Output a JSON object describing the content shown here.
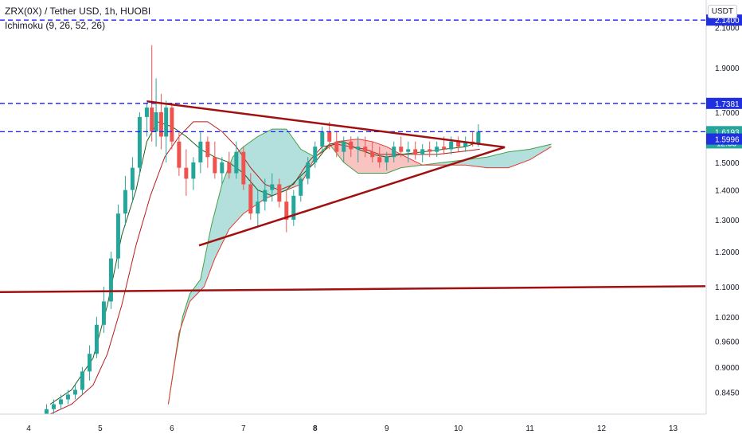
{
  "header": {
    "symbol_line": "ZRX(0X) / Tether USD, 1h, HUOBI",
    "indicator_line": "Ichimoku (9, 26, 52, 26)"
  },
  "currency_button": "USDT",
  "colors": {
    "up": "#26a69a",
    "down": "#ef5350",
    "blue_line": "#1a1aff",
    "trend": "#a01010",
    "cloud_green": "rgba(38,166,154,0.35)",
    "cloud_red": "rgba(239,83,80,0.35)",
    "badge_blue": "#2030e0",
    "badge_green": "#26a69a"
  },
  "chart_data": {
    "type": "candlestick",
    "title": "ZRX(0X) / Tether USD, 1h, HUOBI",
    "y_axis": {
      "side": "right",
      "scale": "log",
      "range": [
        0.8,
        2.25
      ],
      "ticks": [
        "2.1000",
        "1.9000",
        "1.7000",
        "1.5000",
        "1.4000",
        "1.3000",
        "1.2000",
        "1.1000",
        "1.0200",
        "0.9600",
        "0.9000",
        "0.8450"
      ]
    },
    "x_axis": {
      "range": [
        3.6,
        13.45
      ],
      "ticks": [
        {
          "label": "4",
          "value": 4
        },
        {
          "label": "5",
          "value": 5
        },
        {
          "label": "6",
          "value": 6
        },
        {
          "label": "7",
          "value": 7
        },
        {
          "label": "8",
          "value": 8,
          "bold": true
        },
        {
          "label": "9",
          "value": 9
        },
        {
          "label": "10",
          "value": 10
        },
        {
          "label": "11",
          "value": 11
        },
        {
          "label": "12",
          "value": 12
        },
        {
          "label": "13",
          "value": 13
        }
      ]
    },
    "horizontal_levels": [
      {
        "label": "2.1400",
        "value": 2.14,
        "color": "blue",
        "style": "dashed"
      },
      {
        "label": "1.7381",
        "value": 1.7381,
        "color": "blue",
        "style": "dashed"
      },
      {
        "label": "1.6193",
        "value": 1.6193,
        "color": "blue",
        "style": "dashed"
      }
    ],
    "price_badges": [
      {
        "label": "1.6193",
        "value": 1.6193,
        "kind": "last-price"
      },
      {
        "label": "12:33",
        "kind": "countdown"
      },
      {
        "label": "1.5996",
        "value": 1.5996,
        "kind": "level"
      }
    ],
    "trend_lines": [
      {
        "name": "triangle-upper",
        "points": [
          [
            5.65,
            1.747
          ],
          [
            10.65,
            1.558
          ]
        ]
      },
      {
        "name": "triangle-lower",
        "points": [
          [
            6.38,
            1.219
          ],
          [
            10.65,
            1.558
          ]
        ]
      },
      {
        "name": "horizontal-support",
        "points": [
          [
            3.6,
            1.085
          ],
          [
            13.45,
            1.101
          ]
        ]
      }
    ],
    "ichimoku": {
      "params": "9, 26, 52, 26",
      "span_a": [
        [
          5.95,
          0.82
        ],
        [
          6.05,
          0.92
        ],
        [
          6.15,
          1.02
        ],
        [
          6.25,
          1.08
        ],
        [
          6.4,
          1.12
        ],
        [
          6.55,
          1.28
        ],
        [
          6.7,
          1.42
        ],
        [
          6.85,
          1.52
        ],
        [
          7.0,
          1.56
        ],
        [
          7.2,
          1.6
        ],
        [
          7.4,
          1.63
        ],
        [
          7.6,
          1.63
        ],
        [
          7.8,
          1.55
        ],
        [
          8.0,
          1.52
        ],
        [
          8.2,
          1.57
        ],
        [
          8.4,
          1.5
        ],
        [
          8.6,
          1.46
        ],
        [
          8.8,
          1.46
        ],
        [
          9.0,
          1.46
        ],
        [
          9.2,
          1.48
        ],
        [
          9.5,
          1.49
        ],
        [
          9.8,
          1.5
        ],
        [
          10.1,
          1.51
        ],
        [
          10.4,
          1.52
        ],
        [
          10.7,
          1.54
        ],
        [
          11.0,
          1.55
        ],
        [
          11.3,
          1.57
        ]
      ],
      "span_b": [
        [
          5.95,
          0.82
        ],
        [
          6.1,
          0.98
        ],
        [
          6.25,
          1.06
        ],
        [
          6.45,
          1.1
        ],
        [
          6.6,
          1.18
        ],
        [
          6.8,
          1.27
        ],
        [
          7.0,
          1.32
        ],
        [
          7.3,
          1.37
        ],
        [
          7.6,
          1.4
        ],
        [
          7.8,
          1.42
        ],
        [
          8.0,
          1.52
        ],
        [
          8.3,
          1.58
        ],
        [
          8.6,
          1.59
        ],
        [
          8.8,
          1.58
        ],
        [
          9.0,
          1.56
        ],
        [
          9.2,
          1.53
        ],
        [
          9.5,
          1.49
        ],
        [
          9.8,
          1.49
        ],
        [
          10.1,
          1.49
        ],
        [
          10.4,
          1.48
        ],
        [
          10.7,
          1.48
        ],
        [
          11.0,
          1.51
        ],
        [
          11.3,
          1.56
        ]
      ],
      "tenkan": [
        [
          4.3,
          0.82
        ],
        [
          4.6,
          0.85
        ],
        [
          4.9,
          0.92
        ],
        [
          5.1,
          1.05
        ],
        [
          5.3,
          1.25
        ],
        [
          5.5,
          1.4
        ],
        [
          5.65,
          1.58
        ],
        [
          5.8,
          1.66
        ],
        [
          6.0,
          1.64
        ],
        [
          6.2,
          1.6
        ],
        [
          6.4,
          1.55
        ],
        [
          6.6,
          1.52
        ],
        [
          6.8,
          1.5
        ],
        [
          7.0,
          1.46
        ],
        [
          7.2,
          1.4
        ],
        [
          7.4,
          1.38
        ],
        [
          7.6,
          1.4
        ],
        [
          7.8,
          1.45
        ],
        [
          8.0,
          1.5
        ],
        [
          8.2,
          1.57
        ],
        [
          8.4,
          1.58
        ],
        [
          8.6,
          1.55
        ],
        [
          8.8,
          1.53
        ],
        [
          9.0,
          1.52
        ],
        [
          9.2,
          1.53
        ],
        [
          9.5,
          1.54
        ],
        [
          9.8,
          1.55
        ],
        [
          10.1,
          1.56
        ],
        [
          10.3,
          1.58
        ]
      ],
      "kijun": [
        [
          4.3,
          0.8
        ],
        [
          4.6,
          0.82
        ],
        [
          4.9,
          0.86
        ],
        [
          5.1,
          0.93
        ],
        [
          5.3,
          1.05
        ],
        [
          5.5,
          1.22
        ],
        [
          5.7,
          1.38
        ],
        [
          5.9,
          1.52
        ],
        [
          6.1,
          1.6
        ],
        [
          6.3,
          1.66
        ],
        [
          6.5,
          1.66
        ],
        [
          6.7,
          1.62
        ],
        [
          6.9,
          1.56
        ],
        [
          7.1,
          1.48
        ],
        [
          7.3,
          1.42
        ],
        [
          7.5,
          1.4
        ],
        [
          7.7,
          1.42
        ],
        [
          7.9,
          1.5
        ],
        [
          8.1,
          1.56
        ],
        [
          8.3,
          1.57
        ],
        [
          8.5,
          1.56
        ],
        [
          8.7,
          1.55
        ],
        [
          8.9,
          1.53
        ],
        [
          9.1,
          1.53
        ],
        [
          9.4,
          1.53
        ],
        [
          9.7,
          1.53
        ],
        [
          10.0,
          1.54
        ],
        [
          10.3,
          1.55
        ]
      ]
    },
    "candles": [
      {
        "t": 4.25,
        "o": 0.8,
        "h": 0.82,
        "l": 0.79,
        "c": 0.81
      },
      {
        "t": 4.35,
        "o": 0.81,
        "h": 0.83,
        "l": 0.8,
        "c": 0.82
      },
      {
        "t": 4.45,
        "o": 0.82,
        "h": 0.84,
        "l": 0.81,
        "c": 0.83
      },
      {
        "t": 4.55,
        "o": 0.83,
        "h": 0.85,
        "l": 0.82,
        "c": 0.84
      },
      {
        "t": 4.65,
        "o": 0.84,
        "h": 0.86,
        "l": 0.83,
        "c": 0.85
      },
      {
        "t": 4.75,
        "o": 0.85,
        "h": 0.9,
        "l": 0.84,
        "c": 0.89
      },
      {
        "t": 4.85,
        "o": 0.89,
        "h": 0.95,
        "l": 0.87,
        "c": 0.93
      },
      {
        "t": 4.95,
        "o": 0.93,
        "h": 1.02,
        "l": 0.92,
        "c": 1.0
      },
      {
        "t": 5.05,
        "o": 1.0,
        "h": 1.1,
        "l": 0.98,
        "c": 1.06
      },
      {
        "t": 5.15,
        "o": 1.06,
        "h": 1.2,
        "l": 1.04,
        "c": 1.18
      },
      {
        "t": 5.25,
        "o": 1.18,
        "h": 1.35,
        "l": 1.15,
        "c": 1.32
      },
      {
        "t": 5.35,
        "o": 1.32,
        "h": 1.45,
        "l": 1.28,
        "c": 1.4
      },
      {
        "t": 5.45,
        "o": 1.4,
        "h": 1.52,
        "l": 1.36,
        "c": 1.48
      },
      {
        "t": 5.55,
        "o": 1.48,
        "h": 1.7,
        "l": 1.45,
        "c": 1.68
      },
      {
        "t": 5.65,
        "o": 1.68,
        "h": 1.74,
        "l": 1.6,
        "c": 1.72
      },
      {
        "t": 5.72,
        "o": 1.72,
        "h": 2.01,
        "l": 1.58,
        "c": 1.62
      },
      {
        "t": 5.78,
        "o": 1.62,
        "h": 1.85,
        "l": 1.56,
        "c": 1.7
      },
      {
        "t": 5.85,
        "o": 1.7,
        "h": 1.78,
        "l": 1.55,
        "c": 1.6
      },
      {
        "t": 5.92,
        "o": 1.6,
        "h": 1.75,
        "l": 1.5,
        "c": 1.72
      },
      {
        "t": 6.0,
        "o": 1.72,
        "h": 1.74,
        "l": 1.55,
        "c": 1.58
      },
      {
        "t": 6.1,
        "o": 1.58,
        "h": 1.62,
        "l": 1.45,
        "c": 1.48
      },
      {
        "t": 6.2,
        "o": 1.48,
        "h": 1.55,
        "l": 1.38,
        "c": 1.44
      },
      {
        "t": 6.3,
        "o": 1.44,
        "h": 1.52,
        "l": 1.4,
        "c": 1.5
      },
      {
        "t": 6.4,
        "o": 1.5,
        "h": 1.62,
        "l": 1.46,
        "c": 1.58
      },
      {
        "t": 6.5,
        "o": 1.58,
        "h": 1.6,
        "l": 1.48,
        "c": 1.52
      },
      {
        "t": 6.6,
        "o": 1.52,
        "h": 1.58,
        "l": 1.44,
        "c": 1.46
      },
      {
        "t": 6.7,
        "o": 1.46,
        "h": 1.52,
        "l": 1.42,
        "c": 1.5
      },
      {
        "t": 6.8,
        "o": 1.5,
        "h": 1.54,
        "l": 1.44,
        "c": 1.46
      },
      {
        "t": 6.9,
        "o": 1.46,
        "h": 1.58,
        "l": 1.44,
        "c": 1.54
      },
      {
        "t": 7.0,
        "o": 1.54,
        "h": 1.56,
        "l": 1.4,
        "c": 1.42
      },
      {
        "t": 7.1,
        "o": 1.42,
        "h": 1.46,
        "l": 1.3,
        "c": 1.32
      },
      {
        "t": 7.2,
        "o": 1.32,
        "h": 1.4,
        "l": 1.28,
        "c": 1.36
      },
      {
        "t": 7.3,
        "o": 1.36,
        "h": 1.44,
        "l": 1.33,
        "c": 1.4
      },
      {
        "t": 7.4,
        "o": 1.4,
        "h": 1.46,
        "l": 1.36,
        "c": 1.42
      },
      {
        "t": 7.5,
        "o": 1.42,
        "h": 1.44,
        "l": 1.34,
        "c": 1.36
      },
      {
        "t": 7.6,
        "o": 1.36,
        "h": 1.4,
        "l": 1.26,
        "c": 1.3
      },
      {
        "t": 7.7,
        "o": 1.3,
        "h": 1.4,
        "l": 1.28,
        "c": 1.38
      },
      {
        "t": 7.8,
        "o": 1.38,
        "h": 1.46,
        "l": 1.36,
        "c": 1.44
      },
      {
        "t": 7.9,
        "o": 1.44,
        "h": 1.52,
        "l": 1.42,
        "c": 1.5
      },
      {
        "t": 8.0,
        "o": 1.5,
        "h": 1.58,
        "l": 1.48,
        "c": 1.56
      },
      {
        "t": 8.1,
        "o": 1.56,
        "h": 1.64,
        "l": 1.54,
        "c": 1.62
      },
      {
        "t": 8.2,
        "o": 1.62,
        "h": 1.66,
        "l": 1.55,
        "c": 1.58
      },
      {
        "t": 8.3,
        "o": 1.58,
        "h": 1.62,
        "l": 1.52,
        "c": 1.54
      },
      {
        "t": 8.4,
        "o": 1.54,
        "h": 1.6,
        "l": 1.5,
        "c": 1.58
      },
      {
        "t": 8.5,
        "o": 1.58,
        "h": 1.6,
        "l": 1.52,
        "c": 1.55
      },
      {
        "t": 8.6,
        "o": 1.55,
        "h": 1.6,
        "l": 1.5,
        "c": 1.56
      },
      {
        "t": 8.7,
        "o": 1.56,
        "h": 1.6,
        "l": 1.52,
        "c": 1.54
      },
      {
        "t": 8.8,
        "o": 1.54,
        "h": 1.58,
        "l": 1.5,
        "c": 1.52
      },
      {
        "t": 8.9,
        "o": 1.52,
        "h": 1.56,
        "l": 1.48,
        "c": 1.5
      },
      {
        "t": 9.0,
        "o": 1.5,
        "h": 1.54,
        "l": 1.47,
        "c": 1.52
      },
      {
        "t": 9.1,
        "o": 1.52,
        "h": 1.58,
        "l": 1.5,
        "c": 1.56
      },
      {
        "t": 9.2,
        "o": 1.56,
        "h": 1.6,
        "l": 1.52,
        "c": 1.54
      },
      {
        "t": 9.3,
        "o": 1.54,
        "h": 1.58,
        "l": 1.5,
        "c": 1.55
      },
      {
        "t": 9.4,
        "o": 1.55,
        "h": 1.58,
        "l": 1.51,
        "c": 1.53
      },
      {
        "t": 9.5,
        "o": 1.53,
        "h": 1.57,
        "l": 1.5,
        "c": 1.55
      },
      {
        "t": 9.6,
        "o": 1.55,
        "h": 1.58,
        "l": 1.52,
        "c": 1.54
      },
      {
        "t": 9.7,
        "o": 1.54,
        "h": 1.58,
        "l": 1.52,
        "c": 1.56
      },
      {
        "t": 9.8,
        "o": 1.56,
        "h": 1.6,
        "l": 1.53,
        "c": 1.55
      },
      {
        "t": 9.9,
        "o": 1.55,
        "h": 1.6,
        "l": 1.53,
        "c": 1.58
      },
      {
        "t": 10.0,
        "o": 1.58,
        "h": 1.6,
        "l": 1.54,
        "c": 1.56
      },
      {
        "t": 10.1,
        "o": 1.56,
        "h": 1.6,
        "l": 1.54,
        "c": 1.58
      },
      {
        "t": 10.2,
        "o": 1.58,
        "h": 1.62,
        "l": 1.56,
        "c": 1.57
      },
      {
        "t": 10.28,
        "o": 1.57,
        "h": 1.65,
        "l": 1.56,
        "c": 1.6193
      }
    ]
  }
}
